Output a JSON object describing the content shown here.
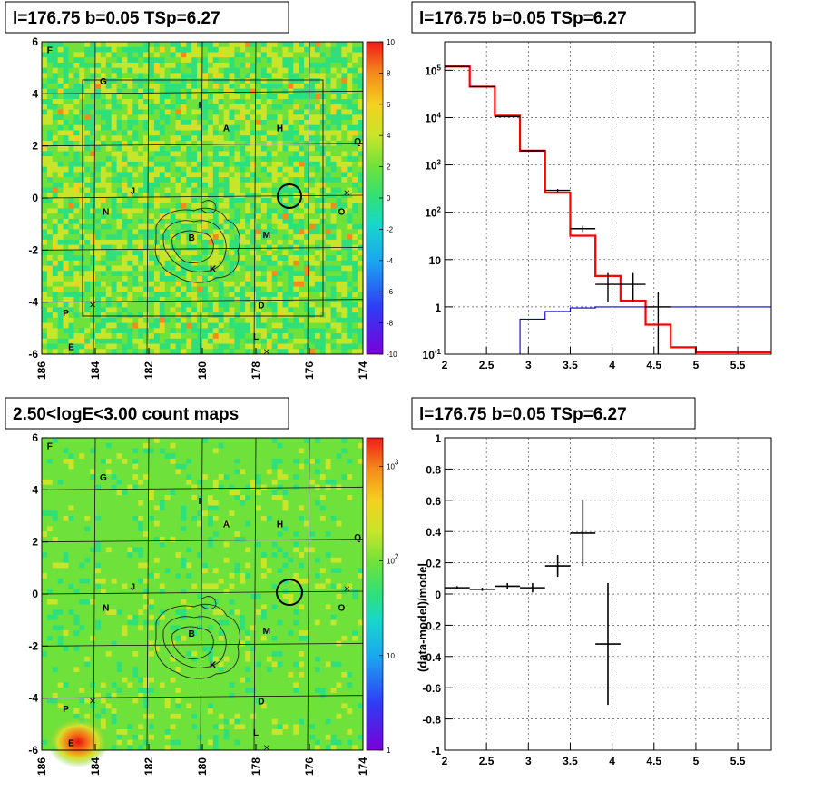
{
  "titles": {
    "map_top": "l=176.75 b=0.05 TSp=6.27",
    "spectrum": "l=176.75 b=0.05 TSp=6.27",
    "map_bottom": "2.50<logE<3.00 count maps",
    "residual": "l=176.75 b=0.05 TSp=6.27"
  },
  "chart_data": [
    {
      "id": "residual_map",
      "type": "heatmap",
      "title": "l=176.75 b=0.05 TSp=6.27",
      "x_ticks": [
        "186",
        "184",
        "182",
        "180",
        "178",
        "176",
        "174"
      ],
      "y_ticks": [
        "6",
        "4",
        "2",
        "0",
        "-2",
        "-4",
        "-6"
      ],
      "xlim": [
        186,
        174
      ],
      "ylim": [
        -6,
        6
      ],
      "colorbar": {
        "range": [
          -10,
          10
        ],
        "ticks": [
          "10",
          "8",
          "6",
          "4",
          "2",
          "0",
          "-2",
          "-4",
          "-6",
          "-8",
          "-10"
        ]
      },
      "sources": [
        {
          "label": "F",
          "l": 185.7,
          "b": 5.7
        },
        {
          "label": "G",
          "l": 183.7,
          "b": 4.5
        },
        {
          "label": "I",
          "l": 180.1,
          "b": 3.6
        },
        {
          "label": "A",
          "l": 179.1,
          "b": 2.7
        },
        {
          "label": "H",
          "l": 177.1,
          "b": 2.7
        },
        {
          "label": "Q",
          "l": 174.2,
          "b": 2.2
        },
        {
          "label": "J",
          "l": 182.6,
          "b": 0.3
        },
        {
          "label": "N",
          "l": 183.6,
          "b": -0.5
        },
        {
          "label": "O",
          "l": 174.8,
          "b": -0.5
        },
        {
          "label": "B",
          "l": 180.4,
          "b": -1.5
        },
        {
          "label": "M",
          "l": 177.6,
          "b": -1.4
        },
        {
          "label": "K",
          "l": 179.6,
          "b": -2.7
        },
        {
          "label": "D",
          "l": 177.8,
          "b": -4.1
        },
        {
          "label": "P",
          "l": 185.1,
          "b": -4.4
        },
        {
          "label": "L",
          "l": 178.0,
          "b": -5.3
        },
        {
          "label": "E",
          "l": 184.9,
          "b": -5.7
        }
      ],
      "circle": {
        "l": 176.75,
        "b": 0.05,
        "r": 0.5
      },
      "box": {
        "l": [
          184.6,
          175.6
        ],
        "b": [
          -4.4,
          4.4
        ]
      }
    },
    {
      "id": "spectrum",
      "type": "line",
      "title": "l=176.75 b=0.05 TSp=6.27",
      "x_ticks": [
        "2",
        "2.5",
        "3",
        "3.5",
        "4",
        "4.5",
        "5",
        "5.5"
      ],
      "y_ticks": [
        "10^5",
        "10^4",
        "10^3",
        "10^2",
        "10",
        "1",
        "10^-1"
      ],
      "xlim": [
        2,
        5.9
      ],
      "ylim": [
        0.1,
        400000
      ],
      "log_y": true,
      "grid": true,
      "data": {
        "x": [
          2.15,
          2.45,
          2.75,
          3.05,
          3.35,
          3.65,
          3.95,
          4.25,
          4.55
        ],
        "y": [
          120000,
          45000,
          10500,
          2000,
          290,
          45,
          3,
          3,
          1
        ],
        "y_lo": [
          118000,
          44000,
          10200,
          1920,
          270,
          38,
          1.3,
          1.3,
          0.1
        ],
        "y_hi": [
          122000,
          46000,
          10800,
          2080,
          310,
          52,
          5.2,
          5.2,
          2.1
        ]
      },
      "series": [
        {
          "color": "#ff0000",
          "edges": [
            2,
            2.3,
            2.6,
            2.9,
            3.2,
            3.5,
            3.8,
            4.1,
            4.4,
            4.7,
            5.0,
            5.9
          ],
          "values": [
            120000,
            45000,
            11000,
            2000,
            260,
            32,
            4.5,
            1.35,
            0.42,
            0.14,
            0.11
          ]
        },
        {
          "color": "#0000cc",
          "edges": [
            2.6,
            2.9,
            3.2,
            3.5,
            3.8,
            5.9
          ],
          "values": [
            0.1,
            0.55,
            0.8,
            0.95,
            1.0
          ]
        }
      ]
    },
    {
      "id": "count_map",
      "type": "heatmap",
      "title": "2.50<logE<3.00 count maps",
      "x_ticks": [
        "186",
        "184",
        "182",
        "180",
        "178",
        "176",
        "174"
      ],
      "y_ticks": [
        "6",
        "4",
        "2",
        "0",
        "-2",
        "-4",
        "-6"
      ],
      "xlim": [
        186,
        174
      ],
      "ylim": [
        -6,
        6
      ],
      "colorbar": {
        "range": [
          1,
          2000
        ],
        "log": true,
        "ticks": [
          "10^3",
          "10^2",
          "10",
          "1"
        ]
      },
      "sources": [
        {
          "label": "F",
          "l": 185.7,
          "b": 5.7
        },
        {
          "label": "G",
          "l": 183.7,
          "b": 4.5
        },
        {
          "label": "I",
          "l": 180.1,
          "b": 3.6
        },
        {
          "label": "A",
          "l": 179.1,
          "b": 2.7
        },
        {
          "label": "H",
          "l": 177.1,
          "b": 2.7
        },
        {
          "label": "Q",
          "l": 174.2,
          "b": 2.2
        },
        {
          "label": "J",
          "l": 182.6,
          "b": 0.3
        },
        {
          "label": "N",
          "l": 183.6,
          "b": -0.5
        },
        {
          "label": "O",
          "l": 174.8,
          "b": -0.5
        },
        {
          "label": "B",
          "l": 180.4,
          "b": -1.5
        },
        {
          "label": "M",
          "l": 177.6,
          "b": -1.4
        },
        {
          "label": "K",
          "l": 179.6,
          "b": -2.7
        },
        {
          "label": "D",
          "l": 177.8,
          "b": -4.1
        },
        {
          "label": "P",
          "l": 185.1,
          "b": -4.4
        },
        {
          "label": "L",
          "l": 178.0,
          "b": -5.3
        },
        {
          "label": "E",
          "l": 184.9,
          "b": -5.7
        }
      ],
      "circle": {
        "l": 176.75,
        "b": 0.05,
        "r": 0.5
      }
    },
    {
      "id": "residuals",
      "type": "scatter",
      "title": "l=176.75 b=0.05 TSp=6.27",
      "ylabel": "(data-model)/model",
      "x_ticks": [
        "2",
        "2.5",
        "3",
        "3.5",
        "4",
        "4.5",
        "5",
        "5.5"
      ],
      "y_ticks": [
        "1",
        "0.8",
        "0.6",
        "0.4",
        "0.2",
        "0",
        "-0.2",
        "-0.4",
        "-0.6",
        "-0.8",
        "-1"
      ],
      "xlim": [
        2,
        5.9
      ],
      "ylim": [
        -1,
        1
      ],
      "grid": true,
      "points": [
        {
          "x": 2.15,
          "y": 0.04,
          "xerr": 0.15,
          "yerr": 0.01
        },
        {
          "x": 2.45,
          "y": 0.03,
          "xerr": 0.15,
          "yerr": 0.01
        },
        {
          "x": 2.75,
          "y": 0.05,
          "xerr": 0.15,
          "yerr": 0.02
        },
        {
          "x": 3.05,
          "y": 0.04,
          "xerr": 0.15,
          "yerr": 0.03
        },
        {
          "x": 3.35,
          "y": 0.18,
          "xerr": 0.15,
          "yerr": 0.07
        },
        {
          "x": 3.65,
          "y": 0.39,
          "xerr": 0.15,
          "yerr": 0.21
        },
        {
          "x": 3.95,
          "y": -0.32,
          "xerr": 0.15,
          "yerr": 0.39
        }
      ]
    }
  ]
}
